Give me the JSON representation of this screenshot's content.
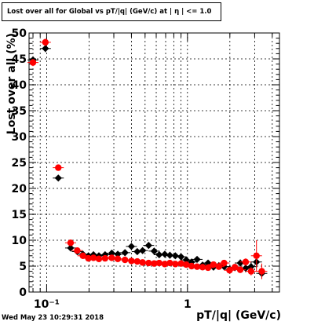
{
  "chart_data": {
    "type": "scatter",
    "title": "Lost over all for Global vs pT/|q| (GeV/c) at | η | <= 1.0",
    "xlabel": "pT/|q| (GeV/c)",
    "ylabel": "Lost over all (%)",
    "xscale": "log",
    "xlim": [
      0.075,
      4.5
    ],
    "ylim": [
      0,
      50
    ],
    "grid": true,
    "x_tick_labels": [
      {
        "value": 0.1,
        "text": "10⁻¹"
      },
      {
        "value": 1,
        "text": "1"
      }
    ],
    "y_tick_labels": [
      "0",
      "5",
      "10",
      "15",
      "20",
      "25",
      "30",
      "35",
      "40",
      "45",
      "50"
    ],
    "series": [
      {
        "color": "#000000",
        "marker": "diamond",
        "points": [
          {
            "x": 0.08,
            "y": 44.8,
            "ey": 0.7
          },
          {
            "x": 0.098,
            "y": 47.0,
            "ey": 0.7
          },
          {
            "x": 0.121,
            "y": 22.0,
            "ey": 0.5
          },
          {
            "x": 0.148,
            "y": 8.5,
            "ey": 0.4
          },
          {
            "x": 0.165,
            "y": 7.8,
            "ey": 0.3
          },
          {
            "x": 0.181,
            "y": 7.3,
            "ey": 0.3
          },
          {
            "x": 0.198,
            "y": 7.0,
            "ey": 0.3
          },
          {
            "x": 0.215,
            "y": 7.2,
            "ey": 0.3
          },
          {
            "x": 0.235,
            "y": 7.0,
            "ey": 0.3
          },
          {
            "x": 0.26,
            "y": 7.2,
            "ey": 0.3
          },
          {
            "x": 0.29,
            "y": 7.5,
            "ey": 0.3
          },
          {
            "x": 0.32,
            "y": 7.3,
            "ey": 0.3
          },
          {
            "x": 0.36,
            "y": 7.6,
            "ey": 0.3
          },
          {
            "x": 0.4,
            "y": 8.8,
            "ey": 0.4
          },
          {
            "x": 0.44,
            "y": 7.8,
            "ey": 0.3
          },
          {
            "x": 0.48,
            "y": 8.0,
            "ey": 0.4
          },
          {
            "x": 0.53,
            "y": 9.0,
            "ey": 0.4
          },
          {
            "x": 0.58,
            "y": 7.9,
            "ey": 0.4
          },
          {
            "x": 0.63,
            "y": 7.2,
            "ey": 0.4
          },
          {
            "x": 0.69,
            "y": 7.3,
            "ey": 0.4
          },
          {
            "x": 0.75,
            "y": 7.1,
            "ey": 0.4
          },
          {
            "x": 0.82,
            "y": 7.0,
            "ey": 0.4
          },
          {
            "x": 0.9,
            "y": 6.8,
            "ey": 0.4
          },
          {
            "x": 0.98,
            "y": 6.2,
            "ey": 0.4
          },
          {
            "x": 1.07,
            "y": 5.8,
            "ey": 0.4
          },
          {
            "x": 1.17,
            "y": 6.3,
            "ey": 0.5
          },
          {
            "x": 1.28,
            "y": 5.2,
            "ey": 0.5
          },
          {
            "x": 1.4,
            "y": 5.6,
            "ey": 0.5
          },
          {
            "x": 1.53,
            "y": 4.8,
            "ey": 0.5
          },
          {
            "x": 1.67,
            "y": 5.1,
            "ey": 0.5
          },
          {
            "x": 1.82,
            "y": 4.9,
            "ey": 0.6
          },
          {
            "x": 1.99,
            "y": 4.4,
            "ey": 0.6
          },
          {
            "x": 2.17,
            "y": 4.7,
            "ey": 0.6
          },
          {
            "x": 2.37,
            "y": 5.6,
            "ey": 0.7
          },
          {
            "x": 2.59,
            "y": 4.6,
            "ey": 0.8
          },
          {
            "x": 2.83,
            "y": 4.9,
            "ey": 0.9
          },
          {
            "x": 3.09,
            "y": 5.8,
            "ey": 1.2
          },
          {
            "x": 3.37,
            "y": 3.6,
            "ey": 1.1
          }
        ]
      },
      {
        "color": "#ff0000",
        "marker": "circle",
        "points": [
          {
            "x": 0.08,
            "y": 44.3,
            "ey": 0.7
          },
          {
            "x": 0.098,
            "y": 48.2,
            "ey": 0.7
          },
          {
            "x": 0.121,
            "y": 24.0,
            "ey": 0.5
          },
          {
            "x": 0.148,
            "y": 9.5,
            "ey": 0.4
          },
          {
            "x": 0.165,
            "y": 8.0,
            "ey": 0.3
          },
          {
            "x": 0.181,
            "y": 7.0,
            "ey": 0.3
          },
          {
            "x": 0.198,
            "y": 6.5,
            "ey": 0.3
          },
          {
            "x": 0.215,
            "y": 6.6,
            "ey": 0.3
          },
          {
            "x": 0.235,
            "y": 6.4,
            "ey": 0.3
          },
          {
            "x": 0.26,
            "y": 6.5,
            "ey": 0.3
          },
          {
            "x": 0.29,
            "y": 6.6,
            "ey": 0.3
          },
          {
            "x": 0.32,
            "y": 6.4,
            "ey": 0.3
          },
          {
            "x": 0.36,
            "y": 6.2,
            "ey": 0.3
          },
          {
            "x": 0.4,
            "y": 6.0,
            "ey": 0.3
          },
          {
            "x": 0.44,
            "y": 5.9,
            "ey": 0.3
          },
          {
            "x": 0.48,
            "y": 5.7,
            "ey": 0.3
          },
          {
            "x": 0.53,
            "y": 5.6,
            "ey": 0.3
          },
          {
            "x": 0.58,
            "y": 5.5,
            "ey": 0.3
          },
          {
            "x": 0.63,
            "y": 5.6,
            "ey": 0.3
          },
          {
            "x": 0.69,
            "y": 5.4,
            "ey": 0.3
          },
          {
            "x": 0.75,
            "y": 5.6,
            "ey": 0.3
          },
          {
            "x": 0.82,
            "y": 5.4,
            "ey": 0.3
          },
          {
            "x": 0.9,
            "y": 5.5,
            "ey": 0.3
          },
          {
            "x": 0.98,
            "y": 5.3,
            "ey": 0.4
          },
          {
            "x": 1.07,
            "y": 5.0,
            "ey": 0.4
          },
          {
            "x": 1.17,
            "y": 4.9,
            "ey": 0.4
          },
          {
            "x": 1.28,
            "y": 4.8,
            "ey": 0.4
          },
          {
            "x": 1.4,
            "y": 4.7,
            "ey": 0.4
          },
          {
            "x": 1.53,
            "y": 5.3,
            "ey": 0.5
          },
          {
            "x": 1.67,
            "y": 4.9,
            "ey": 0.5
          },
          {
            "x": 1.82,
            "y": 5.6,
            "ey": 0.5
          },
          {
            "x": 1.99,
            "y": 4.2,
            "ey": 0.5
          },
          {
            "x": 2.17,
            "y": 4.8,
            "ey": 0.6
          },
          {
            "x": 2.37,
            "y": 4.3,
            "ey": 0.6
          },
          {
            "x": 2.59,
            "y": 5.8,
            "ey": 0.7
          },
          {
            "x": 2.83,
            "y": 4.0,
            "ey": 0.8
          },
          {
            "x": 3.09,
            "y": 7.0,
            "ey": 3.0
          },
          {
            "x": 3.37,
            "y": 4.0,
            "ey": 1.5
          }
        ]
      }
    ]
  },
  "timestamp": "Wed May 23 10:29:31 2018"
}
